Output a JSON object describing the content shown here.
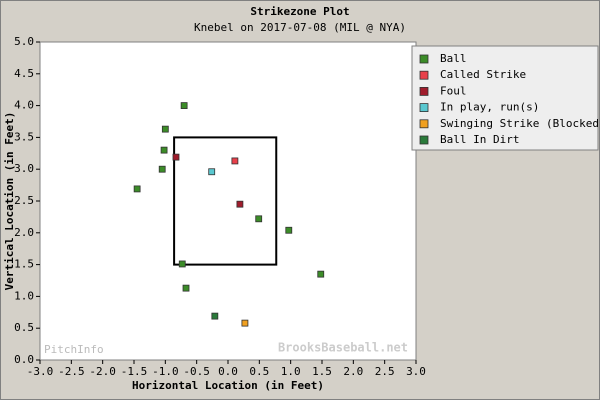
{
  "chart_data": {
    "type": "scatter",
    "title": "Strikezone Plot",
    "subtitle": "Knebel on 2017-07-08 (MIL @ NYA)",
    "x_label": "Horizontal Location (in Feet)",
    "y_label": "Vertical Location (in Feet)",
    "watermarks": [
      "PitchInfo",
      "BrooksBaseball.net"
    ],
    "xlim": [
      -3,
      3
    ],
    "ylim": [
      0,
      5
    ],
    "xticks": [
      {
        "value": -3,
        "label": "-3.0"
      },
      {
        "value": -2.5,
        "label": "-2.5"
      },
      {
        "value": -2,
        "label": "-2.0"
      },
      {
        "value": -1.5,
        "label": "-1.5"
      },
      {
        "value": -1,
        "label": "-1.0"
      },
      {
        "value": -0.5,
        "label": "-0.5"
      },
      {
        "value": 0,
        "label": "0.0"
      },
      {
        "value": 0.5,
        "label": "0.5"
      },
      {
        "value": 1,
        "label": "1.0"
      },
      {
        "value": 1.5,
        "label": "1.5"
      },
      {
        "value": 2,
        "label": "2.0"
      },
      {
        "value": 2.5,
        "label": "2.5"
      },
      {
        "value": 3,
        "label": "3.0"
      }
    ],
    "yticks": [
      {
        "value": 0,
        "label": "0.0"
      },
      {
        "value": 0.5,
        "label": "0.5"
      },
      {
        "value": 1,
        "label": "1.0"
      },
      {
        "value": 1.5,
        "label": "1.5"
      },
      {
        "value": 2,
        "label": "2.0"
      },
      {
        "value": 2.5,
        "label": "2.5"
      },
      {
        "value": 3,
        "label": "3.0"
      },
      {
        "value": 3.5,
        "label": "3.5"
      },
      {
        "value": 4,
        "label": "4.0"
      },
      {
        "value": 4.5,
        "label": "4.5"
      },
      {
        "value": 5,
        "label": "5.0"
      }
    ],
    "strike_zone": {
      "x": [
        -0.86,
        0.77
      ],
      "y": [
        1.5,
        3.5
      ]
    },
    "series": [
      {
        "name": "Ball",
        "color": "#3c8c28",
        "x": [
          -0.7,
          -1.0,
          -1.02,
          -1.05,
          -1.45,
          0.49,
          0.97,
          -0.73,
          -0.67,
          1.48
        ],
        "values": [
          4.0,
          3.63,
          3.3,
          3.0,
          2.69,
          2.22,
          2.04,
          1.51,
          1.13,
          1.35
        ]
      },
      {
        "name": "Called Strike",
        "color": "#e8404a",
        "x": [
          0.11
        ],
        "values": [
          3.13
        ]
      },
      {
        "name": "Foul",
        "color": "#a01c2c",
        "x": [
          -0.83,
          0.19
        ],
        "values": [
          3.19,
          2.45
        ]
      },
      {
        "name": "In play, run(s)",
        "color": "#5ac8d0",
        "x": [
          -0.26
        ],
        "values": [
          2.96
        ]
      },
      {
        "name": "Swinging Strike (Blocked)",
        "color": "#f0a020",
        "x": [
          0.27
        ],
        "values": [
          0.58
        ]
      },
      {
        "name": "Ball In Dirt",
        "color": "#2a7a3a",
        "x": [
          -0.21
        ],
        "values": [
          0.69
        ]
      }
    ]
  }
}
